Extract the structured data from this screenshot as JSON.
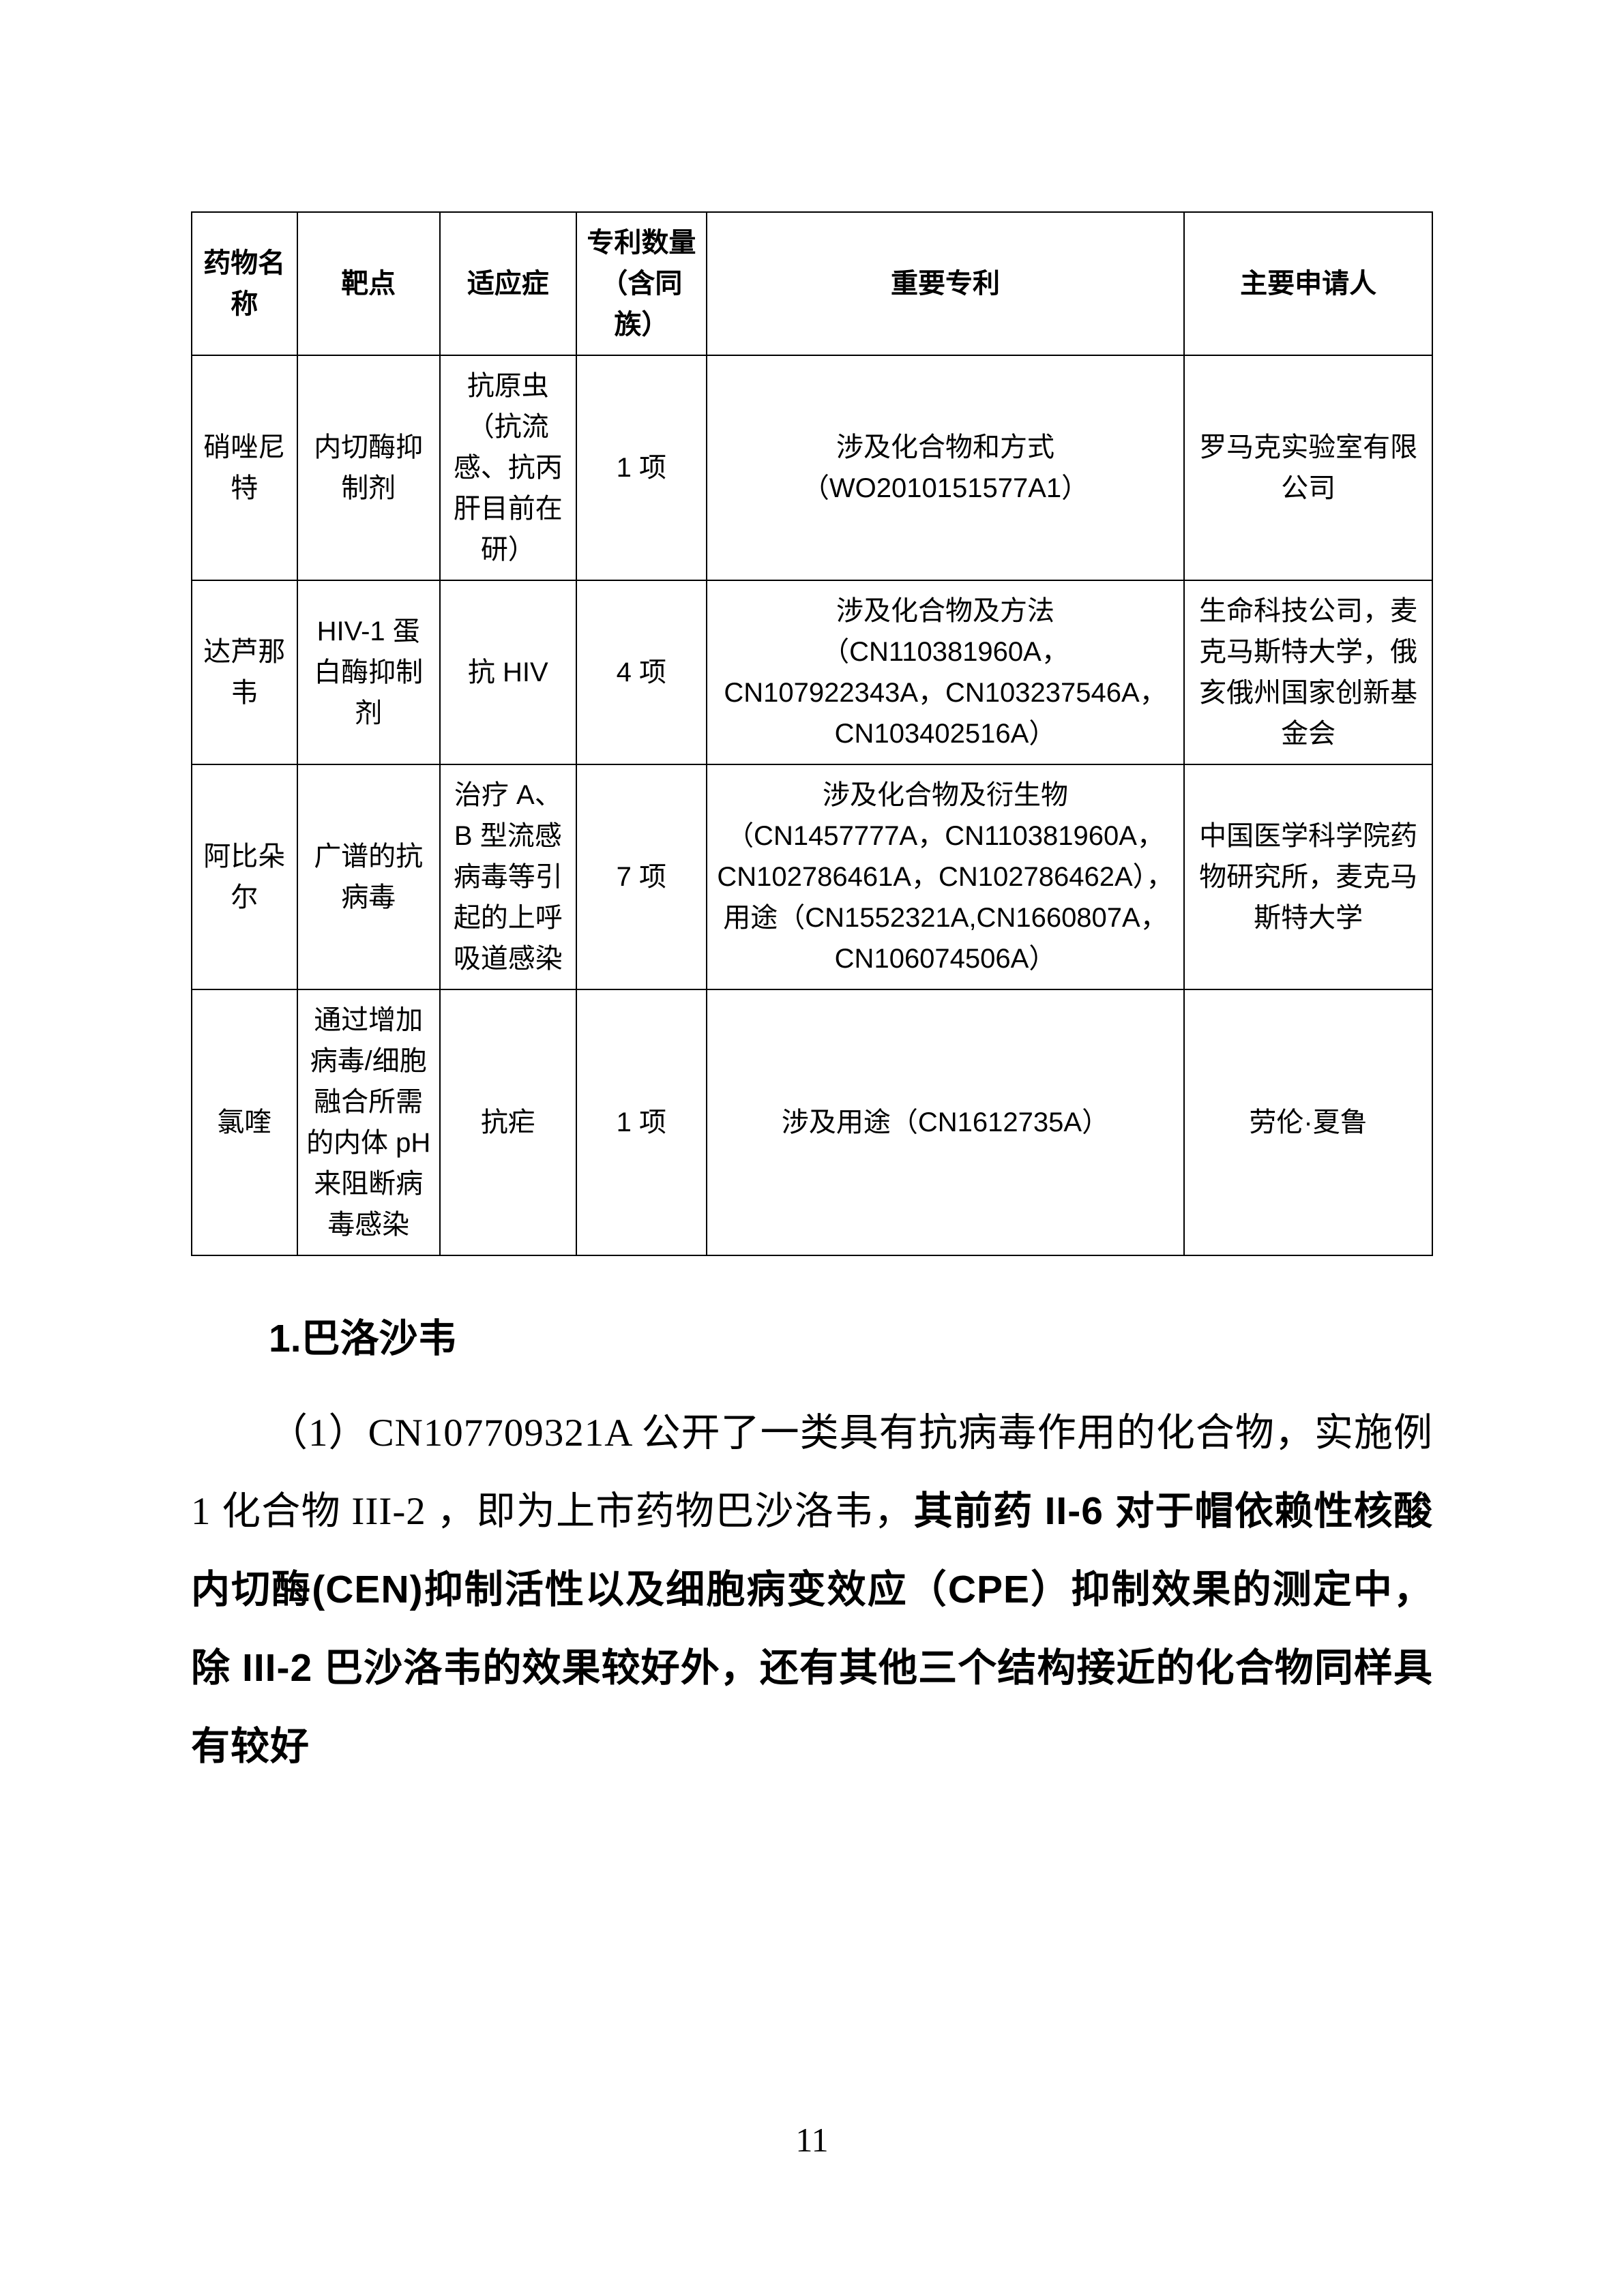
{
  "table": {
    "headers": {
      "c0": "药物名称",
      "c1": "靶点",
      "c2": "适应症",
      "c3": "专利数量（含同族）",
      "c4": "重要专利",
      "c5": "主要申请人"
    },
    "rows": [
      {
        "name": "硝唑尼特",
        "target": "内切酶抑制剂",
        "indication": "抗原虫（抗流感、抗丙肝目前在研）",
        "count": "1 项",
        "patents": "涉及化合物和方式（WO2010151577A1）",
        "applicant": "罗马克实验室有限公司"
      },
      {
        "name": "达芦那韦",
        "target": "HIV-1 蛋白酶抑制剂",
        "indication": "抗 HIV",
        "count": "4 项",
        "patents": "涉及化合物及方法（CN110381960A，CN107922343A，CN103237546A，CN103402516A）",
        "applicant": "生命科技公司，麦克马斯特大学，俄亥俄州国家创新基金会"
      },
      {
        "name": "阿比朵尔",
        "target": "广谱的抗病毒",
        "indication": "治疗 A、B 型流感病毒等引起的上呼吸道感染",
        "count": "7 项",
        "patents": "涉及化合物及衍生物（CN1457777A，CN110381960A，CN102786461A，CN102786462A），用途（CN1552321A,CN1660807A，CN106074506A）",
        "applicant": "中国医学科学院药物研究所，麦克马斯特大学"
      },
      {
        "name": "氯喹",
        "target": "通过增加病毒/细胞融合所需的内体 pH 来阻断病毒感染",
        "indication": "抗疟",
        "count": "1 项",
        "patents": "涉及用途（CN1612735A）",
        "applicant": "劳伦·夏鲁"
      }
    ]
  },
  "section": {
    "title": "1.巴洛沙韦",
    "para_part1": "（1）CN107709321A 公开了一类具有抗病毒作用的化合物，实施例 1 化合物 III-2 ，即为上市药物巴沙洛韦，",
    "para_part2_bold": "其前药 II-6 对于帽依赖性核酸内切酶(CEN)抑制活性以及细胞病变效应（CPE）抑制效果的测定中，除 III-2 巴沙洛韦的效果较好外，还有其他三个结构接近的化合物同样具有较好"
  },
  "page_number": "11"
}
